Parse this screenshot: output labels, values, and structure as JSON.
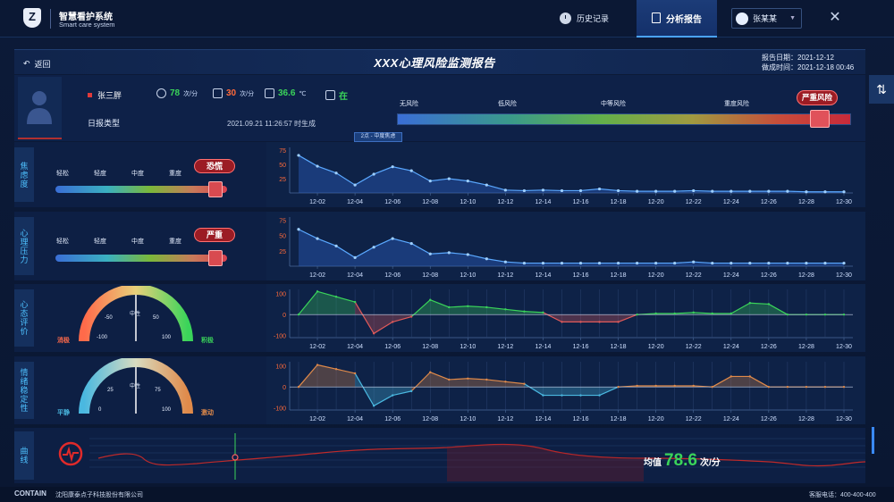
{
  "app": {
    "title": "智慧看护系统",
    "subtitle": "Smart care system",
    "logo_letter": "Z"
  },
  "nav": {
    "history": "历史记录",
    "analysis": "分析报告",
    "user": "张某某"
  },
  "header": {
    "back": "返回",
    "title": "XXX心理风险监测报告",
    "report_date": "报告日期：2021-12-12",
    "gen_time": "做成时间：2021-12-18 00:46"
  },
  "patient": {
    "name": "张三胖",
    "heart_rate": "78",
    "heart_unit": "次/分",
    "breath_rate": "30",
    "breath_unit": "次/分",
    "temperature": "36.6",
    "temp_unit": "℃",
    "status": "在",
    "report_type": "日报类型",
    "generated": "2021.09.21    11:26:57    时生成"
  },
  "risk": {
    "levels": [
      "无风险",
      "低风险",
      "中等风险",
      "重度风险"
    ],
    "current": "严重风险",
    "mini_tag": "2点 - 中度焦虑",
    "value": 0.93
  },
  "rows": [
    {
      "label": "焦虑度",
      "levels": [
        "轻松",
        "轻度",
        "中度",
        "重度"
      ],
      "tag": "恐慌",
      "level": 0.93
    },
    {
      "label": "心理压力",
      "levels": [
        "轻松",
        "轻度",
        "中度",
        "重度"
      ],
      "tag": "严重",
      "level": 0.93
    },
    {
      "label": "心态评价",
      "gauge": {
        "left": "消极",
        "right": "积极",
        "center": "中性",
        "ticks": [
          "-100",
          "-50",
          "0",
          "50",
          "100"
        ]
      }
    },
    {
      "label": "情绪稳定性",
      "gauge": {
        "left": "平静",
        "right": "激动",
        "center": "中性",
        "ticks": [
          "0",
          "25",
          "50",
          "75",
          "100"
        ]
      }
    }
  ],
  "curve": {
    "label": "曲线",
    "avg_label": "均值",
    "avg_value": "78.6",
    "avg_unit": "次/分"
  },
  "footer": {
    "brand": "CONTAIN",
    "company": "沈阳康泰点子科技股份有限公司",
    "phone": "客服电话：400-400-400"
  },
  "colors": {
    "accent": "#4ec1ff",
    "danger": "#d84a50",
    "positive": "#3ad45a",
    "warm": "#e08a4a",
    "cool": "#4ab8e0"
  },
  "chart_data": [
    {
      "type": "area",
      "title": "焦虑度",
      "x": [
        "12-01",
        "12-02",
        "12-03",
        "12-04",
        "12-05",
        "12-06",
        "12-07",
        "12-08",
        "12-09",
        "12-10",
        "12-11",
        "12-12",
        "12-13",
        "12-14",
        "12-15",
        "12-16",
        "12-17",
        "12-18",
        "12-19",
        "12-20",
        "12-21",
        "12-22",
        "12-23",
        "12-24",
        "12-25",
        "12-26",
        "12-27",
        "12-28",
        "12-29",
        "12-30"
      ],
      "xticks": [
        "12-02",
        "12-04",
        "12-06",
        "12-08",
        "12-10",
        "12-12",
        "12-14",
        "12-16",
        "12-18",
        "12-20",
        "12-22",
        "12-24",
        "12-26",
        "12-28",
        "12-30"
      ],
      "values": [
        66,
        47,
        35,
        14,
        33,
        46,
        39,
        21,
        25,
        21,
        14,
        5,
        4,
        5,
        4,
        4,
        7,
        4,
        3,
        3,
        3,
        4,
        3,
        3,
        3,
        3,
        3,
        2,
        2,
        2
      ],
      "ylim": [
        0,
        80
      ],
      "yticks": [
        25,
        50,
        75
      ]
    },
    {
      "type": "area",
      "title": "心理压力",
      "x": [
        "12-01",
        "12-02",
        "12-03",
        "12-04",
        "12-05",
        "12-06",
        "12-07",
        "12-08",
        "12-09",
        "12-10",
        "12-11",
        "12-12",
        "12-13",
        "12-14",
        "12-15",
        "12-16",
        "12-17",
        "12-18",
        "12-19",
        "12-20",
        "12-21",
        "12-22",
        "12-23",
        "12-24",
        "12-25",
        "12-26",
        "12-27",
        "12-28",
        "12-29",
        "12-30"
      ],
      "xticks": [
        "12-02",
        "12-04",
        "12-06",
        "12-08",
        "12-10",
        "12-12",
        "12-14",
        "12-16",
        "12-18",
        "12-20",
        "12-22",
        "12-24",
        "12-26",
        "12-28",
        "12-30"
      ],
      "values": [
        60,
        45,
        33,
        14,
        31,
        45,
        37,
        20,
        22,
        19,
        12,
        7,
        5,
        5,
        5,
        5,
        5,
        5,
        5,
        5,
        5,
        7,
        5,
        5,
        5,
        5,
        5,
        5,
        5,
        5
      ],
      "ylim": [
        0,
        80
      ],
      "yticks": [
        25,
        50,
        75
      ]
    },
    {
      "type": "area",
      "title": "心态评价",
      "x": [
        "12-01",
        "12-02",
        "12-03",
        "12-04",
        "12-05",
        "12-06",
        "12-07",
        "12-08",
        "12-09",
        "12-10",
        "12-11",
        "12-12",
        "12-13",
        "12-14",
        "12-15",
        "12-16",
        "12-17",
        "12-18",
        "12-19",
        "12-20",
        "12-21",
        "12-22",
        "12-23",
        "12-24",
        "12-25",
        "12-26",
        "12-27",
        "12-28",
        "12-29",
        "12-30"
      ],
      "xticks": [
        "12-02",
        "12-04",
        "12-06",
        "12-08",
        "12-10",
        "12-12",
        "12-14",
        "12-16",
        "12-18",
        "12-20",
        "12-22",
        "12-24",
        "12-26",
        "12-28",
        "12-30"
      ],
      "values": [
        0,
        110,
        85,
        60,
        -90,
        -35,
        -10,
        70,
        35,
        40,
        35,
        25,
        15,
        10,
        -35,
        -35,
        -35,
        -35,
        0,
        5,
        5,
        10,
        5,
        5,
        55,
        50,
        0,
        0,
        0,
        0
      ],
      "ylim": [
        -110,
        120
      ],
      "yticks": [
        100,
        0,
        -100
      ]
    },
    {
      "type": "area",
      "title": "情绪稳定性",
      "x": [
        "12-01",
        "12-02",
        "12-03",
        "12-04",
        "12-05",
        "12-06",
        "12-07",
        "12-08",
        "12-09",
        "12-10",
        "12-11",
        "12-12",
        "12-13",
        "12-14",
        "12-15",
        "12-16",
        "12-17",
        "12-18",
        "12-19",
        "12-20",
        "12-21",
        "12-22",
        "12-23",
        "12-24",
        "12-25",
        "12-26",
        "12-27",
        "12-28",
        "12-29",
        "12-30"
      ],
      "xticks": [
        "12-02",
        "12-04",
        "12-06",
        "12-08",
        "12-10",
        "12-12",
        "12-14",
        "12-16",
        "12-18",
        "12-20",
        "12-22",
        "12-24",
        "12-26",
        "12-28",
        "12-30"
      ],
      "values": [
        0,
        105,
        85,
        65,
        -90,
        -40,
        -20,
        70,
        35,
        40,
        35,
        25,
        15,
        -40,
        -40,
        -40,
        -40,
        0,
        5,
        5,
        5,
        5,
        0,
        50,
        50,
        0,
        0,
        0,
        0,
        0
      ],
      "ylim": [
        -110,
        120
      ],
      "yticks": [
        100,
        0,
        -100
      ]
    }
  ]
}
